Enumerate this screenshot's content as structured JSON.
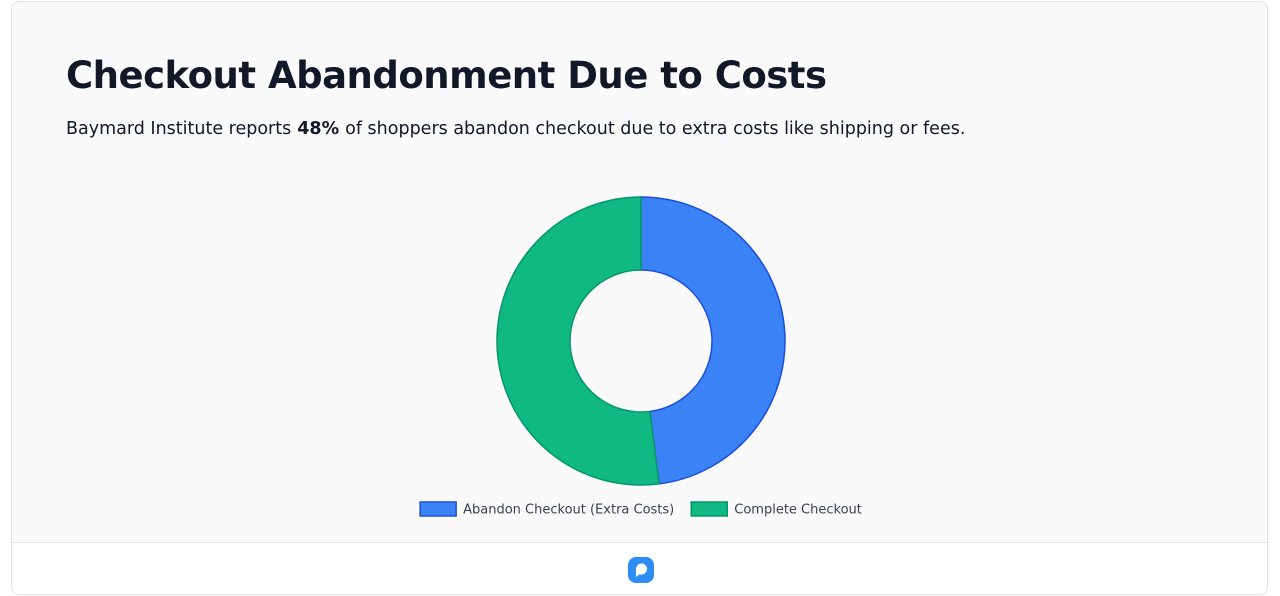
{
  "chart_data": {
    "type": "donut",
    "title": "Checkout Abandonment Due to Costs",
    "subtitle": {
      "before": "Baymard Institute reports",
      "highlight": "48%",
      "after": "of shoppers abandon checkout due to extra costs like shipping or fees."
    },
    "categories": [
      "Abandon Checkout (Extra Costs)",
      "Complete Checkout"
    ],
    "values": [
      48,
      52
    ],
    "colors": [
      "#3b82f6",
      "#10b981"
    ],
    "border_colors": [
      "#1d4ed8",
      "#059669"
    ]
  }
}
